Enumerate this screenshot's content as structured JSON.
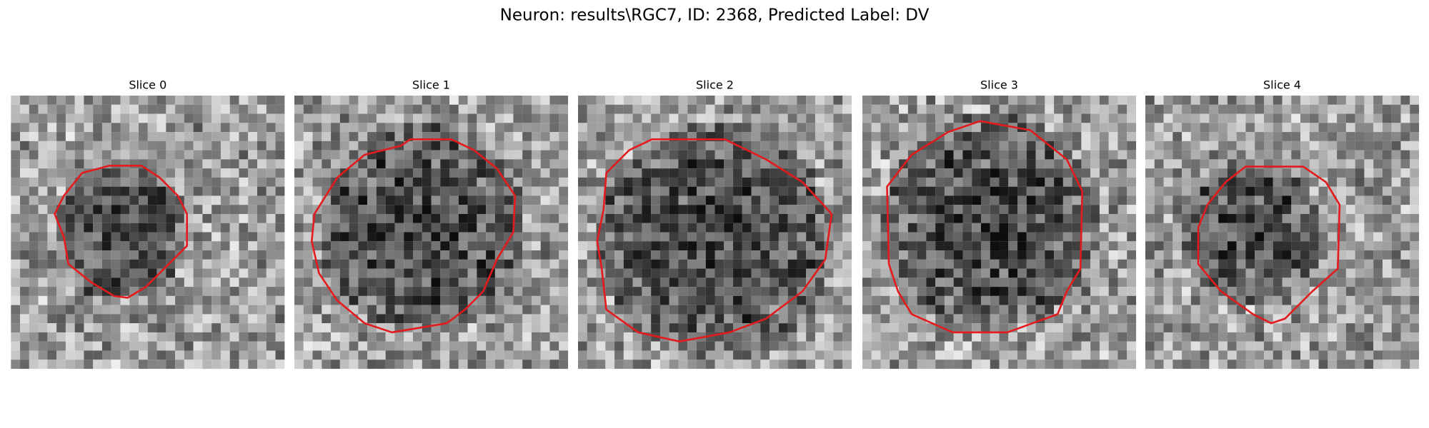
{
  "title": "Neuron: results\\RGC7, ID: 2368, Predicted Label: DV",
  "panels": [
    {
      "title": "Slice 0"
    },
    {
      "title": "Slice 1"
    },
    {
      "title": "Slice 2"
    },
    {
      "title": "Slice 3"
    },
    {
      "title": "Slice 4"
    }
  ]
}
